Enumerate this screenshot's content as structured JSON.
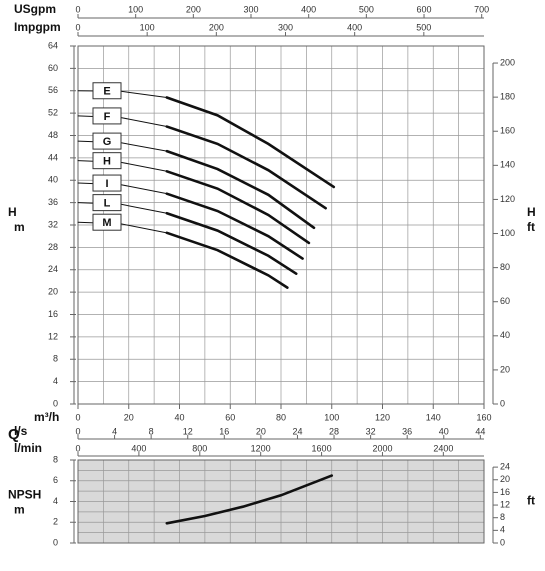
{
  "chart_data": [
    {
      "type": "line",
      "ylabel": [
        "H",
        "m"
      ],
      "y2label": [
        "H",
        "ft"
      ],
      "xlabel": "m³/h",
      "flow_symbol": "Q",
      "xlim": [
        0,
        160
      ],
      "xticks": [
        0,
        20,
        40,
        60,
        80,
        100,
        120,
        140,
        160
      ],
      "ylim": [
        0,
        64
      ],
      "yticks": [
        0,
        4,
        8,
        12,
        16,
        20,
        24,
        28,
        32,
        36,
        40,
        44,
        48,
        52,
        56,
        60,
        64
      ],
      "y2lim": [
        0,
        210
      ],
      "y2ticks": [
        0,
        20,
        40,
        60,
        80,
        100,
        120,
        140,
        160,
        180,
        200
      ],
      "grid": true,
      "xgrid_step": 10,
      "ygrid_step": 4,
      "top_axes": [
        {
          "label": "USgpm",
          "lim": [
            0,
            704
          ],
          "ticks": [
            0,
            100,
            200,
            300,
            400,
            500,
            600,
            700
          ]
        },
        {
          "label": "Impgpm",
          "lim": [
            0,
            587
          ],
          "ticks": [
            0,
            100,
            200,
            300,
            400,
            500
          ]
        }
      ],
      "bottom_axes": [
        {
          "label": "l/s",
          "lim": [
            0,
            44.4
          ],
          "ticks": [
            0,
            4,
            8,
            12,
            16,
            20,
            24,
            28,
            32,
            36,
            40,
            44
          ]
        },
        {
          "label": "l/min",
          "lim": [
            0,
            2667
          ],
          "ticks": [
            0,
            400,
            800,
            1200,
            1600,
            2000,
            2400
          ]
        }
      ],
      "series": [
        {
          "name": "E",
          "color": "#111111",
          "x": [
            0,
            17,
            35,
            55,
            75,
            100.8
          ],
          "values": [
            56,
            55.9,
            54.8,
            51.6,
            46.5,
            38.8
          ]
        },
        {
          "name": "F",
          "color": "#111111",
          "x": [
            0,
            17,
            35,
            55,
            75,
            97.6
          ],
          "values": [
            51.5,
            51.2,
            49.6,
            46.5,
            41.8,
            35
          ]
        },
        {
          "name": "G",
          "color": "#111111",
          "x": [
            0,
            17,
            35,
            55,
            75,
            93
          ],
          "values": [
            47,
            46.7,
            45.2,
            42,
            37.4,
            31.5
          ]
        },
        {
          "name": "H",
          "color": "#111111",
          "x": [
            0,
            17,
            35,
            55,
            75,
            91
          ],
          "values": [
            43.5,
            43.2,
            41.6,
            38.5,
            33.8,
            28.8
          ]
        },
        {
          "name": "I",
          "color": "#111111",
          "x": [
            0,
            17,
            35,
            55,
            75,
            88.5
          ],
          "values": [
            39.5,
            39.2,
            37.6,
            34.5,
            30,
            26
          ]
        },
        {
          "name": "L",
          "color": "#111111",
          "x": [
            0,
            17,
            35,
            55,
            75,
            86
          ],
          "values": [
            36,
            35.7,
            34.1,
            31,
            26.5,
            23.3
          ]
        },
        {
          "name": "M",
          "color": "#111111",
          "x": [
            0,
            17,
            35,
            55,
            75,
            82.5
          ],
          "values": [
            32.5,
            32.2,
            30.6,
            27.5,
            23,
            20.8
          ]
        }
      ]
    },
    {
      "type": "line",
      "ylabel": [
        "NPSH",
        "m"
      ],
      "y2label": [
        "ft"
      ],
      "xlim": [
        0,
        160
      ],
      "ylim": [
        0,
        8
      ],
      "yticks": [
        0,
        2,
        4,
        6,
        8
      ],
      "y2lim": [
        0,
        26.25
      ],
      "y2ticks": [
        0,
        4,
        8,
        12,
        16,
        20,
        24
      ],
      "grid": true,
      "xgrid_step": 10,
      "ygrid_step": 1,
      "background": "#d9d9d9",
      "series": [
        {
          "color": "#111111",
          "x": [
            35,
            50,
            65,
            80,
            100
          ],
          "values": [
            1.9,
            2.6,
            3.5,
            4.6,
            6.5
          ]
        }
      ]
    }
  ]
}
